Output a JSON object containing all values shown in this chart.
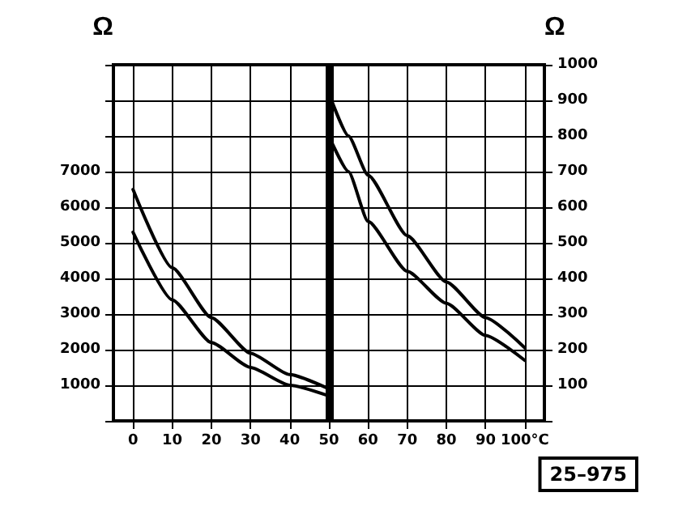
{
  "chart_data": {
    "type": "line",
    "ylabel": "Ω",
    "y2label": "Ω",
    "xlim": [
      -5,
      105
    ],
    "xticks": [
      0,
      10,
      20,
      30,
      40,
      50,
      60,
      70,
      80,
      90,
      {
        "value": 100,
        "label": "100°C"
      }
    ],
    "ylim": [
      0,
      10000
    ],
    "yticks": [
      {
        "value": 0,
        "label": null
      },
      1000,
      2000,
      3000,
      4000,
      5000,
      6000,
      7000,
      {
        "value": 8000,
        "label": null
      },
      {
        "value": 9000,
        "label": null
      },
      {
        "value": 10000,
        "label": null
      }
    ],
    "y2lim": [
      0,
      1000
    ],
    "y2ticks": [
      {
        "value": 0,
        "label": null
      },
      100,
      200,
      300,
      400,
      500,
      600,
      700,
      800,
      900,
      1000
    ],
    "series": [
      {
        "color": "#000000",
        "x": [
          0,
          10,
          20,
          30,
          40,
          50
        ],
        "values": [
          6500,
          4300,
          2900,
          1900,
          1300,
          900
        ]
      },
      {
        "color": "#000000",
        "x": [
          0,
          10,
          20,
          30,
          40,
          50
        ],
        "values": [
          5300,
          3400,
          2200,
          1500,
          1000,
          700
        ]
      },
      {
        "color": "#000000",
        "axis": "y2",
        "x": [
          50,
          55,
          60,
          70,
          80,
          90,
          100
        ],
        "values": [
          920,
          800,
          690,
          520,
          390,
          290,
          205
        ]
      },
      {
        "color": "#000000",
        "axis": "y2",
        "x": [
          50,
          55,
          60,
          70,
          80,
          90,
          100
        ],
        "values": [
          800,
          700,
          560,
          420,
          330,
          240,
          170
        ]
      }
    ],
    "ref_lines": [
      {
        "axis": "x",
        "value": 50,
        "color": "#000000"
      }
    ],
    "annotations": [
      "25–975"
    ],
    "grid": true,
    "marker": "none",
    "line_style": "solid"
  }
}
